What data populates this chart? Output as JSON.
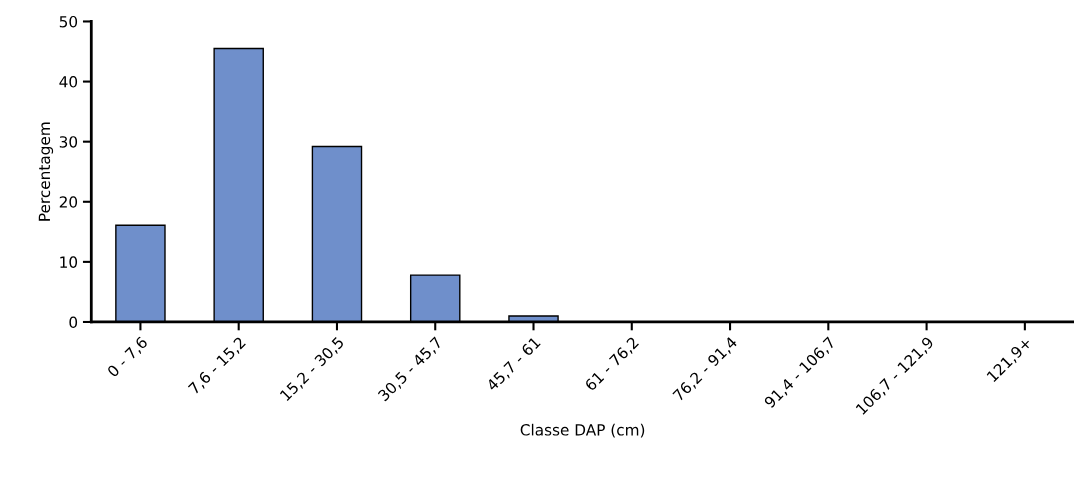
{
  "chart_data": {
    "type": "bar",
    "xlabel": "Classe DAP (cm)",
    "ylabel": "Percentagem",
    "categories": [
      "0 - 7,6",
      "7,6 - 15,2",
      "15,2 - 30,5",
      "30,5 - 45,7",
      "45,7 - 61",
      "61 - 76,2",
      "76,2 - 91,4",
      "91,4 - 106,7",
      "106,7 - 121,9",
      "121,9+"
    ],
    "values": [
      16.1,
      45.5,
      29.2,
      7.8,
      1.0,
      0,
      0,
      0,
      0,
      0
    ],
    "color": "#6f8fcb",
    "ylim": [
      0,
      50
    ],
    "yticks": [
      0,
      10,
      20,
      30,
      40,
      50
    ],
    "grid": false,
    "legend": false
  }
}
